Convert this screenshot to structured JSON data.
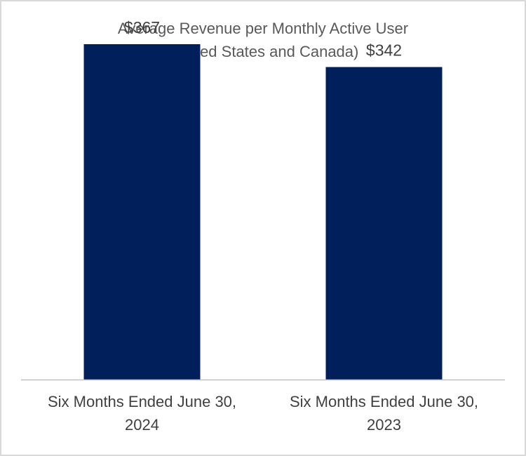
{
  "chart_data": {
    "type": "bar",
    "title": [
      "Average Revenue per Monthly Active User",
      "(United States and Canada)"
    ],
    "categories": [
      [
        "Six Months Ended June 30,",
        "2024"
      ],
      [
        "Six Months Ended June 30,",
        "2023"
      ]
    ],
    "values": [
      367,
      342
    ],
    "data_labels": [
      "$367",
      "$342"
    ],
    "ylim": [
      0,
      400
    ],
    "grid": false,
    "legend": "none",
    "colors": {
      "bar": "#001f5b",
      "axis": "#bfbfbf",
      "frame": "#d9d9d9"
    }
  }
}
